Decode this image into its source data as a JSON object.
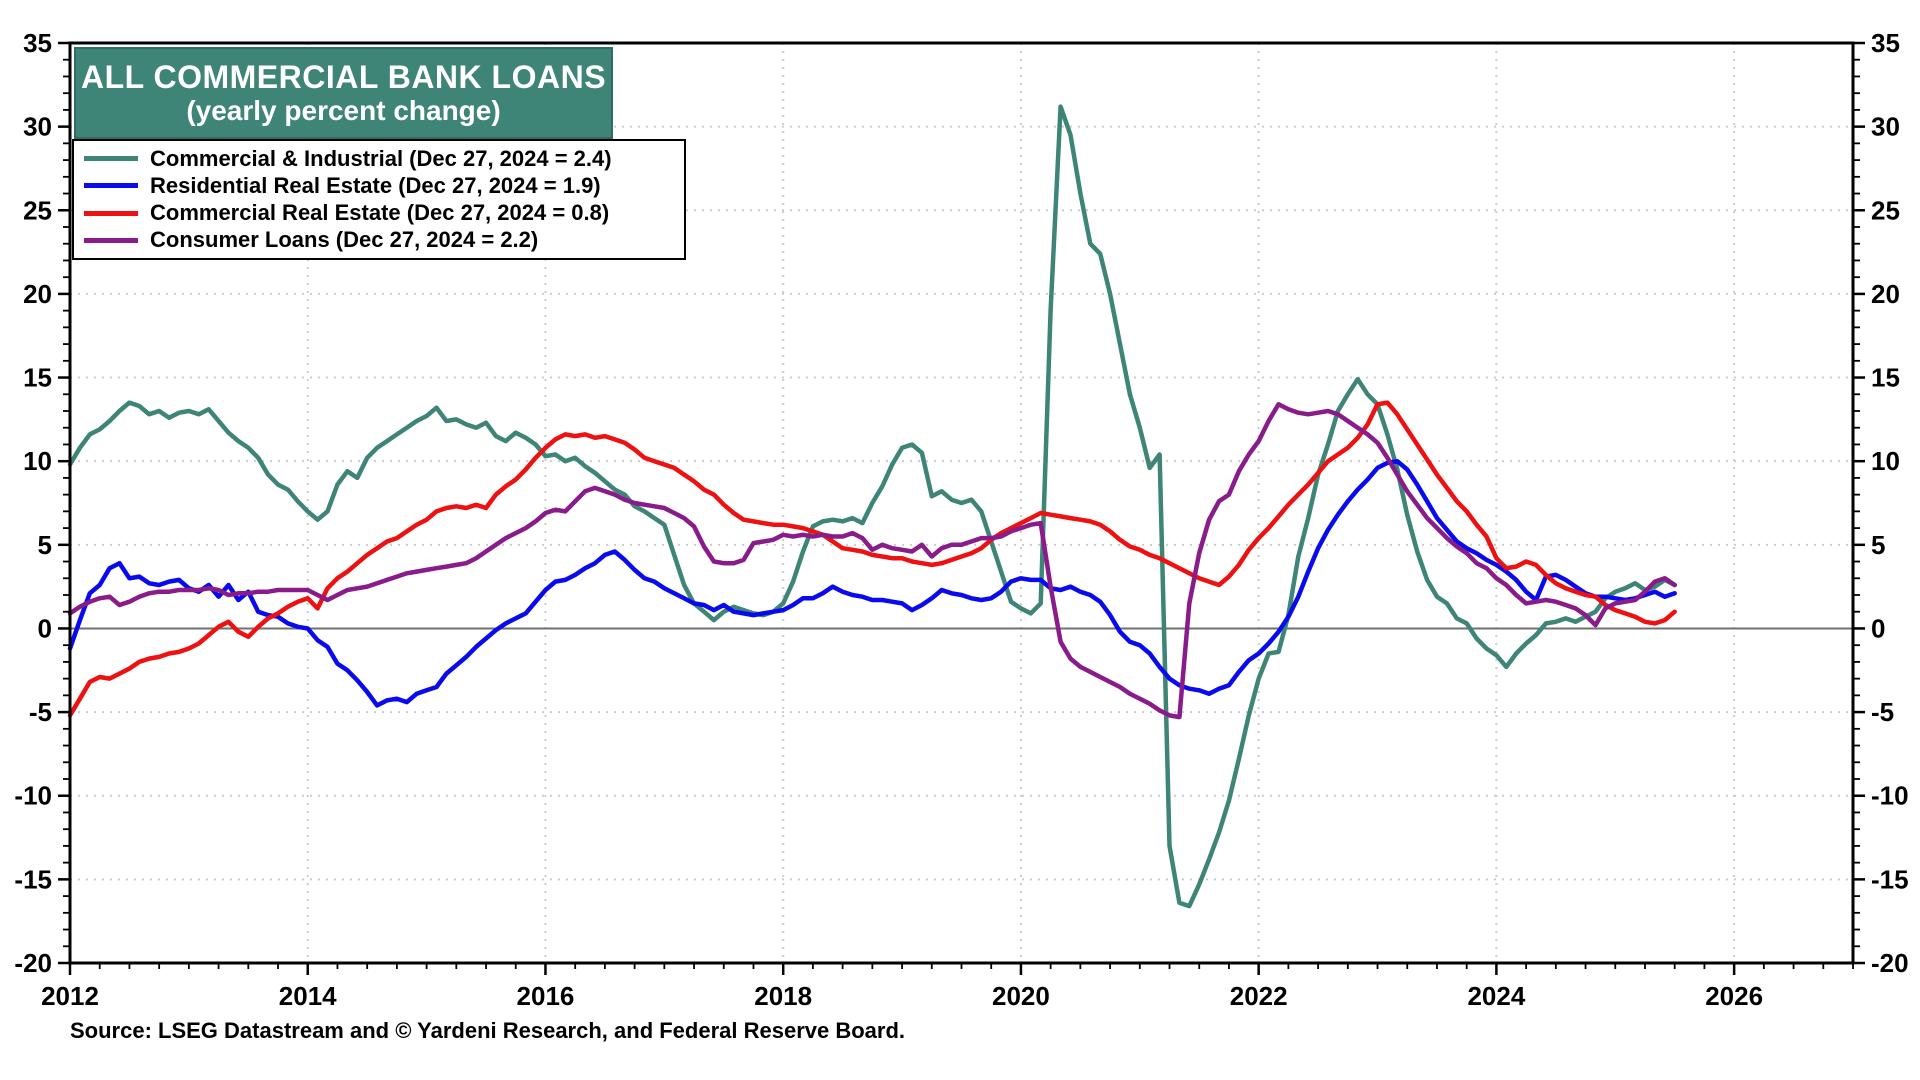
{
  "source_note": "Source: LSEG Datastream and © Yardeni Research, and Federal Reserve Board.",
  "colors": {
    "title_box_bg": "#3E8577",
    "title_box_border": "#2E6E60",
    "title_text": "#FFFFFF",
    "grid": "#CCCCCC",
    "zero_line": "#707070",
    "axis": "#000000",
    "background": "#FFFFFF"
  },
  "chart_data": {
    "type": "line",
    "title": "ALL COMMERCIAL BANK LOANS",
    "subtitle": "(yearly percent change)",
    "xlabel": "",
    "ylabel": "",
    "xlim": [
      2012,
      2027
    ],
    "ylim": [
      -20,
      35
    ],
    "x_ticks": [
      2012,
      2014,
      2016,
      2018,
      2020,
      2022,
      2024,
      2026
    ],
    "x_grid_years": [
      2014,
      2016,
      2018,
      2020,
      2022,
      2024,
      2026
    ],
    "y_ticks": [
      35,
      30,
      25,
      20,
      15,
      10,
      5,
      0,
      -5,
      -10,
      -15,
      -20
    ],
    "x_minor_step": 0.25,
    "y_minor_step": 1,
    "grid": "dotted",
    "zero_line": true,
    "legend_position": "top-left",
    "x_start": 2012.0,
    "x_step": 0.0833333,
    "series": [
      {
        "id": "commercial-industrial",
        "label": "Commercial & Industrial (Dec 27, 2024 = 2.4)",
        "last_date": "Dec 27, 2024",
        "last_value": 2.4,
        "color": "#3E8577",
        "values": [
          9.8,
          10.8,
          11.6,
          11.9,
          12.4,
          13.0,
          13.5,
          13.3,
          12.8,
          13.0,
          12.6,
          12.9,
          13.0,
          12.8,
          13.1,
          12.4,
          11.7,
          11.2,
          10.8,
          10.2,
          9.2,
          8.6,
          8.3,
          7.6,
          7.0,
          6.5,
          7.0,
          8.6,
          9.4,
          9.0,
          10.2,
          10.8,
          11.2,
          11.6,
          12.0,
          12.4,
          12.7,
          13.2,
          12.4,
          12.5,
          12.2,
          12.0,
          12.3,
          11.5,
          11.2,
          11.7,
          11.4,
          11.0,
          10.3,
          10.4,
          10.0,
          10.2,
          9.7,
          9.3,
          8.8,
          8.3,
          8.0,
          7.3,
          7.0,
          6.6,
          6.2,
          4.4,
          2.6,
          1.5,
          1.0,
          0.5,
          1.0,
          1.3,
          1.1,
          0.9,
          0.8,
          1.0,
          1.5,
          2.8,
          4.6,
          6.1,
          6.4,
          6.5,
          6.4,
          6.6,
          6.3,
          7.5,
          8.5,
          9.8,
          10.8,
          11.0,
          10.5,
          7.9,
          8.2,
          7.7,
          7.5,
          7.7,
          7.0,
          5.2,
          3.4,
          1.6,
          1.2,
          0.9,
          1.5,
          19.0,
          31.2,
          29.5,
          26.0,
          23.0,
          22.4,
          20.0,
          17.0,
          14.0,
          12.0,
          9.6,
          10.4,
          -13.0,
          -16.4,
          -16.6,
          -15.3,
          -13.8,
          -12.2,
          -10.3,
          -7.8,
          -5.2,
          -3.0,
          -1.5,
          -1.4,
          0.8,
          4.3,
          6.6,
          9.2,
          11.0,
          13.0,
          14.0,
          14.9,
          14.0,
          13.4,
          11.6,
          9.5,
          6.8,
          4.6,
          2.9,
          1.9,
          1.5,
          0.6,
          0.3,
          -0.6,
          -1.2,
          -1.6,
          -2.3,
          -1.5,
          -0.9,
          -0.4,
          0.3,
          0.4,
          0.6,
          0.4,
          0.7,
          1.0,
          1.8,
          2.2,
          2.4,
          2.7,
          2.3,
          2.5,
          2.9,
          2.6
        ]
      },
      {
        "id": "residential-real-estate",
        "label": "Residential Real Estate (Dec 27, 2024 = 1.9)",
        "last_date": "Dec 27, 2024",
        "last_value": 1.9,
        "color": "#0A0AEE",
        "values": [
          -1.2,
          0.5,
          2.1,
          2.6,
          3.6,
          3.9,
          3.0,
          3.1,
          2.7,
          2.6,
          2.8,
          2.9,
          2.4,
          2.2,
          2.6,
          1.9,
          2.6,
          1.7,
          2.2,
          1.0,
          0.8,
          0.7,
          0.3,
          0.1,
          0.0,
          -0.7,
          -1.1,
          -2.1,
          -2.5,
          -3.1,
          -3.8,
          -4.6,
          -4.3,
          -4.2,
          -4.4,
          -3.9,
          -3.7,
          -3.5,
          -2.7,
          -2.2,
          -1.7,
          -1.1,
          -0.6,
          -0.1,
          0.3,
          0.6,
          0.9,
          1.6,
          2.3,
          2.8,
          2.9,
          3.2,
          3.6,
          3.9,
          4.4,
          4.6,
          4.1,
          3.5,
          3.0,
          2.8,
          2.4,
          2.1,
          1.8,
          1.5,
          1.4,
          1.1,
          1.4,
          1.0,
          0.9,
          0.8,
          0.9,
          1.0,
          1.1,
          1.4,
          1.8,
          1.8,
          2.1,
          2.5,
          2.2,
          2.0,
          1.9,
          1.7,
          1.7,
          1.6,
          1.5,
          1.1,
          1.4,
          1.8,
          2.3,
          2.1,
          2.0,
          1.8,
          1.7,
          1.8,
          2.2,
          2.8,
          3.0,
          2.9,
          2.9,
          2.4,
          2.3,
          2.5,
          2.2,
          2.0,
          1.6,
          0.8,
          -0.2,
          -0.8,
          -1.0,
          -1.5,
          -2.3,
          -3.0,
          -3.4,
          -3.6,
          -3.7,
          -3.9,
          -3.6,
          -3.4,
          -2.6,
          -1.9,
          -1.5,
          -0.9,
          -0.2,
          0.7,
          1.9,
          3.4,
          4.8,
          5.9,
          6.8,
          7.6,
          8.3,
          8.9,
          9.6,
          9.9,
          10.0,
          9.5,
          8.6,
          7.6,
          6.6,
          5.9,
          5.2,
          4.8,
          4.5,
          4.1,
          3.8,
          3.4,
          2.9,
          2.2,
          1.7,
          3.1,
          3.2,
          2.9,
          2.5,
          2.1,
          1.9,
          1.9,
          1.8,
          1.7,
          1.8,
          2.0,
          2.2,
          1.9,
          2.1
        ]
      },
      {
        "id": "commercial-real-estate",
        "label": "Commercial Real Estate (Dec 27, 2024 = 0.8)",
        "last_date": "Dec 27, 2024",
        "last_value": 0.8,
        "color": "#EE1111",
        "values": [
          -5.2,
          -4.2,
          -3.2,
          -2.9,
          -3.0,
          -2.7,
          -2.4,
          -2.0,
          -1.8,
          -1.7,
          -1.5,
          -1.4,
          -1.2,
          -0.9,
          -0.4,
          0.1,
          0.4,
          -0.2,
          -0.5,
          0.1,
          0.6,
          0.9,
          1.3,
          1.6,
          1.8,
          1.2,
          2.4,
          3.0,
          3.4,
          3.9,
          4.4,
          4.8,
          5.2,
          5.4,
          5.8,
          6.2,
          6.5,
          7.0,
          7.2,
          7.3,
          7.2,
          7.4,
          7.2,
          8.0,
          8.5,
          8.9,
          9.5,
          10.2,
          10.8,
          11.3,
          11.6,
          11.5,
          11.6,
          11.4,
          11.5,
          11.3,
          11.1,
          10.7,
          10.2,
          10.0,
          9.8,
          9.6,
          9.2,
          8.8,
          8.3,
          8.0,
          7.4,
          6.9,
          6.5,
          6.4,
          6.3,
          6.2,
          6.2,
          6.1,
          6.0,
          5.8,
          5.6,
          5.2,
          4.8,
          4.7,
          4.6,
          4.4,
          4.3,
          4.2,
          4.2,
          4.0,
          3.9,
          3.8,
          3.9,
          4.1,
          4.3,
          4.5,
          4.8,
          5.3,
          5.7,
          6.0,
          6.3,
          6.6,
          6.9,
          6.8,
          6.7,
          6.6,
          6.5,
          6.4,
          6.2,
          5.8,
          5.3,
          4.9,
          4.7,
          4.4,
          4.2,
          3.9,
          3.6,
          3.3,
          3.0,
          2.8,
          2.6,
          3.1,
          3.8,
          4.7,
          5.4,
          6.0,
          6.7,
          7.4,
          8.0,
          8.6,
          9.3,
          10.0,
          10.4,
          10.8,
          11.4,
          12.2,
          13.4,
          13.5,
          12.8,
          11.9,
          11.0,
          10.1,
          9.2,
          8.4,
          7.6,
          7.0,
          6.2,
          5.5,
          4.2,
          3.6,
          3.7,
          4.0,
          3.8,
          3.2,
          2.7,
          2.4,
          2.2,
          2.0,
          1.9,
          1.4,
          1.1,
          0.9,
          0.7,
          0.4,
          0.3,
          0.5,
          1.0
        ]
      },
      {
        "id": "consumer-loans",
        "label": "Consumer Loans (Dec 27, 2024 = 2.2)",
        "last_date": "Dec 27, 2024",
        "last_value": 2.2,
        "color": "#8A1B8A",
        "values": [
          0.9,
          1.3,
          1.6,
          1.8,
          1.9,
          1.4,
          1.6,
          1.9,
          2.1,
          2.2,
          2.2,
          2.3,
          2.3,
          2.3,
          2.4,
          2.3,
          2.0,
          2.1,
          2.1,
          2.2,
          2.2,
          2.3,
          2.3,
          2.3,
          2.3,
          2.0,
          1.7,
          2.0,
          2.3,
          2.4,
          2.5,
          2.7,
          2.9,
          3.1,
          3.3,
          3.4,
          3.5,
          3.6,
          3.7,
          3.8,
          3.9,
          4.2,
          4.6,
          5.0,
          5.4,
          5.7,
          6.0,
          6.4,
          6.9,
          7.1,
          7.0,
          7.6,
          8.2,
          8.4,
          8.2,
          8.0,
          7.7,
          7.5,
          7.4,
          7.3,
          7.2,
          6.9,
          6.6,
          6.1,
          4.9,
          4.0,
          3.9,
          3.9,
          4.1,
          5.1,
          5.2,
          5.3,
          5.6,
          5.5,
          5.6,
          5.5,
          5.6,
          5.5,
          5.5,
          5.7,
          5.4,
          4.7,
          5.0,
          4.8,
          4.7,
          4.6,
          5.0,
          4.3,
          4.8,
          5.0,
          5.0,
          5.2,
          5.4,
          5.4,
          5.5,
          5.8,
          6.0,
          6.2,
          6.3,
          2.5,
          -0.8,
          -1.8,
          -2.3,
          -2.6,
          -2.9,
          -3.2,
          -3.5,
          -3.9,
          -4.2,
          -4.5,
          -4.9,
          -5.2,
          -5.3,
          1.5,
          4.5,
          6.5,
          7.6,
          8.0,
          9.4,
          10.4,
          11.2,
          12.4,
          13.4,
          13.1,
          12.9,
          12.8,
          12.9,
          13.0,
          12.8,
          12.4,
          12.0,
          11.6,
          11.1,
          10.2,
          9.2,
          8.2,
          7.4,
          6.6,
          6.0,
          5.4,
          4.9,
          4.5,
          3.9,
          3.6,
          3.0,
          2.6,
          2.0,
          1.5,
          1.6,
          1.7,
          1.6,
          1.4,
          1.2,
          0.8,
          0.2,
          1.2,
          1.5,
          1.6,
          1.7,
          2.2,
          2.8,
          3.0,
          2.6
        ]
      }
    ]
  }
}
